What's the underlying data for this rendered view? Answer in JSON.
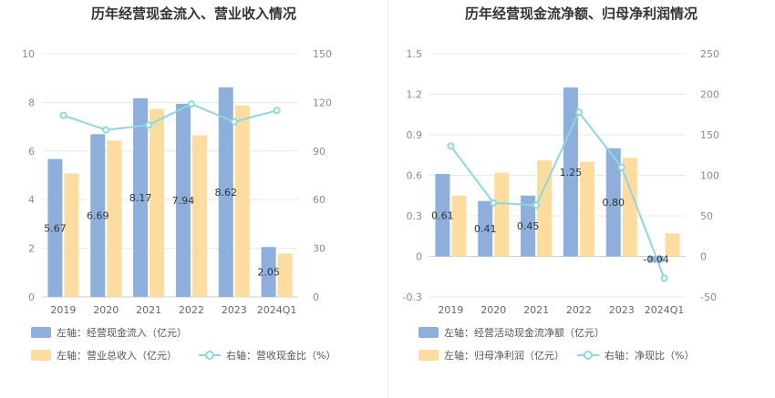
{
  "chart_data": [
    {
      "type": "bar",
      "title": "历年经营现金流入、营业收入情况",
      "categories": [
        "2019",
        "2020",
        "2021",
        "2022",
        "2023",
        "2024Q1"
      ],
      "y_left": {
        "range": [
          0,
          10
        ],
        "ticks": [
          "0",
          "2",
          "4",
          "6",
          "8",
          "10"
        ]
      },
      "y_right": {
        "range": [
          0,
          150
        ],
        "ticks": [
          "0",
          "30",
          "60",
          "90",
          "120",
          "150"
        ]
      },
      "series": [
        {
          "name": "左轴：经营现金流入（亿元）",
          "kind": "bar",
          "axis": "left",
          "color": "#8eaedc",
          "values": [
            5.67,
            6.69,
            8.17,
            7.94,
            8.62,
            2.05
          ],
          "labels": [
            "5.67",
            "6.69",
            "8.17",
            "7.94",
            "8.62",
            "2.05"
          ]
        },
        {
          "name": "左轴：营业总收入（亿元）",
          "kind": "bar",
          "axis": "left",
          "color": "#fddca0",
          "values": [
            5.07,
            6.43,
            7.73,
            6.65,
            7.87,
            1.78
          ]
        },
        {
          "name": "右轴：营收现金比（%）",
          "kind": "line",
          "axis": "right",
          "color": "#8ed8dd",
          "values": [
            112,
            103,
            106,
            119,
            108,
            115
          ]
        }
      ],
      "grid": true,
      "legend": "bottom"
    },
    {
      "type": "bar",
      "title": "历年经营现金流净额、归母净利润情况",
      "categories": [
        "2019",
        "2020",
        "2021",
        "2022",
        "2023",
        "2024Q1"
      ],
      "y_left": {
        "range": [
          -0.3,
          1.5
        ],
        "ticks": [
          "-0.3",
          "0",
          "0.3",
          "0.6",
          "0.9",
          "1.2",
          "1.5"
        ]
      },
      "y_right": {
        "range": [
          -50,
          250
        ],
        "ticks": [
          "-50",
          "0",
          "50",
          "100",
          "150",
          "200",
          "250"
        ]
      },
      "series": [
        {
          "name": "左轴：经营活动现金流净额（亿元）",
          "kind": "bar",
          "axis": "left",
          "color": "#8eaedc",
          "values": [
            0.61,
            0.41,
            0.45,
            1.25,
            0.8,
            -0.04
          ],
          "labels": [
            "0.61",
            "0.41",
            "0.45",
            "1.25",
            "0.80",
            "-0.04"
          ]
        },
        {
          "name": "左轴：归母净利润（亿元）",
          "kind": "bar",
          "axis": "left",
          "color": "#fddca0",
          "values": [
            0.45,
            0.62,
            0.71,
            0.7,
            0.73,
            0.17
          ]
        },
        {
          "name": "右轴：净现比（%）",
          "kind": "line",
          "axis": "right",
          "color": "#8ed8dd",
          "values": [
            136,
            66,
            63,
            178,
            110,
            -27
          ]
        }
      ],
      "grid": true,
      "legend": "bottom"
    }
  ]
}
